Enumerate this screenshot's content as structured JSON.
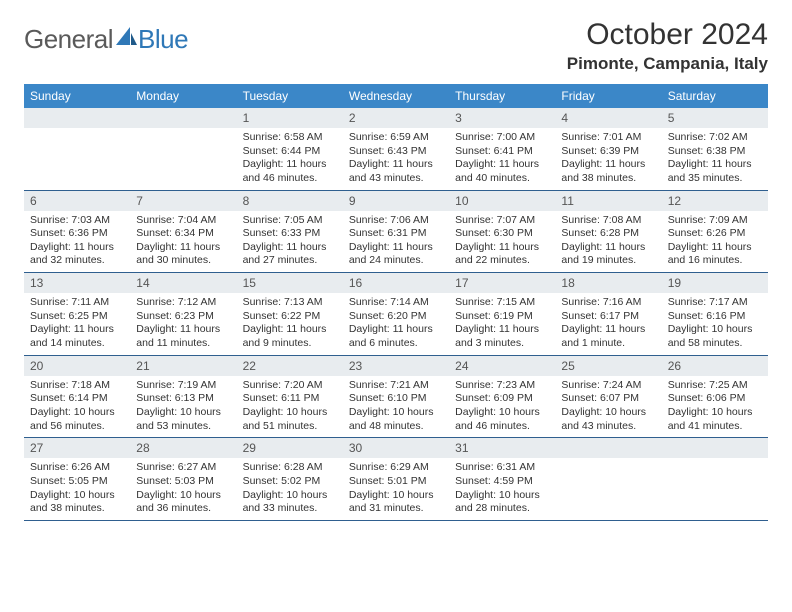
{
  "logo": {
    "text1": "General",
    "text2": "Blue"
  },
  "title": "October 2024",
  "location": "Pimonte, Campania, Italy",
  "day_header_bg": "#3b87c8",
  "day_header_fg": "#ffffff",
  "daynum_bg": "#e8ecef",
  "border_color": "#2f5f8f",
  "days": [
    "Sunday",
    "Monday",
    "Tuesday",
    "Wednesday",
    "Thursday",
    "Friday",
    "Saturday"
  ],
  "weeks": [
    [
      {
        "n": "",
        "sr": "",
        "ss": "",
        "dl1": "",
        "dl2": ""
      },
      {
        "n": "",
        "sr": "",
        "ss": "",
        "dl1": "",
        "dl2": ""
      },
      {
        "n": "1",
        "sr": "Sunrise: 6:58 AM",
        "ss": "Sunset: 6:44 PM",
        "dl1": "Daylight: 11 hours",
        "dl2": "and 46 minutes."
      },
      {
        "n": "2",
        "sr": "Sunrise: 6:59 AM",
        "ss": "Sunset: 6:43 PM",
        "dl1": "Daylight: 11 hours",
        "dl2": "and 43 minutes."
      },
      {
        "n": "3",
        "sr": "Sunrise: 7:00 AM",
        "ss": "Sunset: 6:41 PM",
        "dl1": "Daylight: 11 hours",
        "dl2": "and 40 minutes."
      },
      {
        "n": "4",
        "sr": "Sunrise: 7:01 AM",
        "ss": "Sunset: 6:39 PM",
        "dl1": "Daylight: 11 hours",
        "dl2": "and 38 minutes."
      },
      {
        "n": "5",
        "sr": "Sunrise: 7:02 AM",
        "ss": "Sunset: 6:38 PM",
        "dl1": "Daylight: 11 hours",
        "dl2": "and 35 minutes."
      }
    ],
    [
      {
        "n": "6",
        "sr": "Sunrise: 7:03 AM",
        "ss": "Sunset: 6:36 PM",
        "dl1": "Daylight: 11 hours",
        "dl2": "and 32 minutes."
      },
      {
        "n": "7",
        "sr": "Sunrise: 7:04 AM",
        "ss": "Sunset: 6:34 PM",
        "dl1": "Daylight: 11 hours",
        "dl2": "and 30 minutes."
      },
      {
        "n": "8",
        "sr": "Sunrise: 7:05 AM",
        "ss": "Sunset: 6:33 PM",
        "dl1": "Daylight: 11 hours",
        "dl2": "and 27 minutes."
      },
      {
        "n": "9",
        "sr": "Sunrise: 7:06 AM",
        "ss": "Sunset: 6:31 PM",
        "dl1": "Daylight: 11 hours",
        "dl2": "and 24 minutes."
      },
      {
        "n": "10",
        "sr": "Sunrise: 7:07 AM",
        "ss": "Sunset: 6:30 PM",
        "dl1": "Daylight: 11 hours",
        "dl2": "and 22 minutes."
      },
      {
        "n": "11",
        "sr": "Sunrise: 7:08 AM",
        "ss": "Sunset: 6:28 PM",
        "dl1": "Daylight: 11 hours",
        "dl2": "and 19 minutes."
      },
      {
        "n": "12",
        "sr": "Sunrise: 7:09 AM",
        "ss": "Sunset: 6:26 PM",
        "dl1": "Daylight: 11 hours",
        "dl2": "and 16 minutes."
      }
    ],
    [
      {
        "n": "13",
        "sr": "Sunrise: 7:11 AM",
        "ss": "Sunset: 6:25 PM",
        "dl1": "Daylight: 11 hours",
        "dl2": "and 14 minutes."
      },
      {
        "n": "14",
        "sr": "Sunrise: 7:12 AM",
        "ss": "Sunset: 6:23 PM",
        "dl1": "Daylight: 11 hours",
        "dl2": "and 11 minutes."
      },
      {
        "n": "15",
        "sr": "Sunrise: 7:13 AM",
        "ss": "Sunset: 6:22 PM",
        "dl1": "Daylight: 11 hours",
        "dl2": "and 9 minutes."
      },
      {
        "n": "16",
        "sr": "Sunrise: 7:14 AM",
        "ss": "Sunset: 6:20 PM",
        "dl1": "Daylight: 11 hours",
        "dl2": "and 6 minutes."
      },
      {
        "n": "17",
        "sr": "Sunrise: 7:15 AM",
        "ss": "Sunset: 6:19 PM",
        "dl1": "Daylight: 11 hours",
        "dl2": "and 3 minutes."
      },
      {
        "n": "18",
        "sr": "Sunrise: 7:16 AM",
        "ss": "Sunset: 6:17 PM",
        "dl1": "Daylight: 11 hours",
        "dl2": "and 1 minute."
      },
      {
        "n": "19",
        "sr": "Sunrise: 7:17 AM",
        "ss": "Sunset: 6:16 PM",
        "dl1": "Daylight: 10 hours",
        "dl2": "and 58 minutes."
      }
    ],
    [
      {
        "n": "20",
        "sr": "Sunrise: 7:18 AM",
        "ss": "Sunset: 6:14 PM",
        "dl1": "Daylight: 10 hours",
        "dl2": "and 56 minutes."
      },
      {
        "n": "21",
        "sr": "Sunrise: 7:19 AM",
        "ss": "Sunset: 6:13 PM",
        "dl1": "Daylight: 10 hours",
        "dl2": "and 53 minutes."
      },
      {
        "n": "22",
        "sr": "Sunrise: 7:20 AM",
        "ss": "Sunset: 6:11 PM",
        "dl1": "Daylight: 10 hours",
        "dl2": "and 51 minutes."
      },
      {
        "n": "23",
        "sr": "Sunrise: 7:21 AM",
        "ss": "Sunset: 6:10 PM",
        "dl1": "Daylight: 10 hours",
        "dl2": "and 48 minutes."
      },
      {
        "n": "24",
        "sr": "Sunrise: 7:23 AM",
        "ss": "Sunset: 6:09 PM",
        "dl1": "Daylight: 10 hours",
        "dl2": "and 46 minutes."
      },
      {
        "n": "25",
        "sr": "Sunrise: 7:24 AM",
        "ss": "Sunset: 6:07 PM",
        "dl1": "Daylight: 10 hours",
        "dl2": "and 43 minutes."
      },
      {
        "n": "26",
        "sr": "Sunrise: 7:25 AM",
        "ss": "Sunset: 6:06 PM",
        "dl1": "Daylight: 10 hours",
        "dl2": "and 41 minutes."
      }
    ],
    [
      {
        "n": "27",
        "sr": "Sunrise: 6:26 AM",
        "ss": "Sunset: 5:05 PM",
        "dl1": "Daylight: 10 hours",
        "dl2": "and 38 minutes."
      },
      {
        "n": "28",
        "sr": "Sunrise: 6:27 AM",
        "ss": "Sunset: 5:03 PM",
        "dl1": "Daylight: 10 hours",
        "dl2": "and 36 minutes."
      },
      {
        "n": "29",
        "sr": "Sunrise: 6:28 AM",
        "ss": "Sunset: 5:02 PM",
        "dl1": "Daylight: 10 hours",
        "dl2": "and 33 minutes."
      },
      {
        "n": "30",
        "sr": "Sunrise: 6:29 AM",
        "ss": "Sunset: 5:01 PM",
        "dl1": "Daylight: 10 hours",
        "dl2": "and 31 minutes."
      },
      {
        "n": "31",
        "sr": "Sunrise: 6:31 AM",
        "ss": "Sunset: 4:59 PM",
        "dl1": "Daylight: 10 hours",
        "dl2": "and 28 minutes."
      },
      {
        "n": "",
        "sr": "",
        "ss": "",
        "dl1": "",
        "dl2": ""
      },
      {
        "n": "",
        "sr": "",
        "ss": "",
        "dl1": "",
        "dl2": ""
      }
    ]
  ]
}
